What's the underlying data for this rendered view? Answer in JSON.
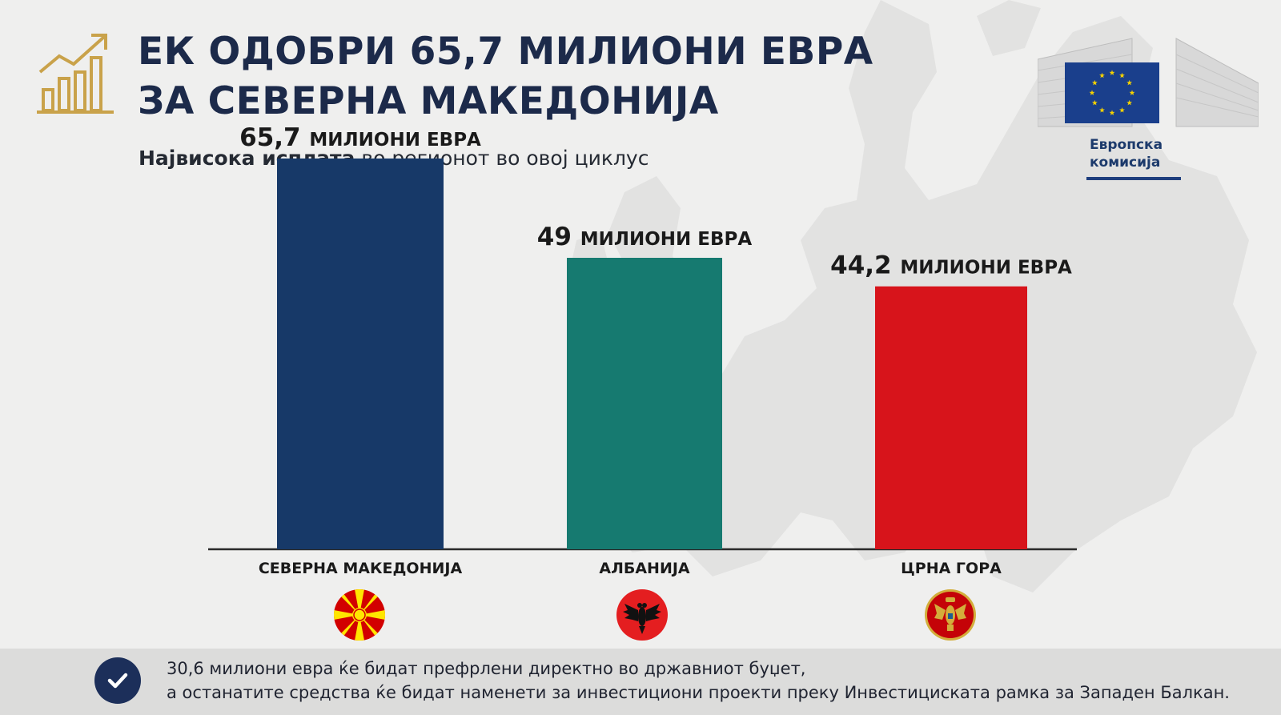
{
  "header": {
    "title_line1": "ЕК ОДОБРИ 65,7 МИЛИОНИ ЕВРА",
    "title_line2": "ЗА СЕВЕРНА МАКЕДОНИЈА",
    "subtitle_bold": "Највисока исплата",
    "subtitle_rest": " во регионот во овој циклус",
    "icon": "growth-chart-icon"
  },
  "logo": {
    "line1": "Европска",
    "line2": "комисија",
    "icon": "eu-flag-icon"
  },
  "chart_data": {
    "type": "bar",
    "categories": [
      "СЕВЕРНА МАКЕДОНИЈА",
      "АЛБАНИЈА",
      "ЦРНА ГОРА"
    ],
    "values": [
      65.7,
      49,
      44.2
    ],
    "value_labels": [
      {
        "number": "65,7",
        "unit": "МИЛИОНИ ЕВРА"
      },
      {
        "number": "49",
        "unit": "МИЛИОНИ ЕВРА"
      },
      {
        "number": "44,2",
        "unit": "МИЛИОНИ ЕВРА"
      }
    ],
    "colors": [
      "#173968",
      "#167a70",
      "#d7141b"
    ],
    "flags": [
      "north-macedonia-flag-icon",
      "albania-flag-icon",
      "montenegro-flag-icon"
    ],
    "ylim": [
      0,
      70
    ],
    "title": "",
    "xlabel": "",
    "ylabel": "",
    "grid": false,
    "legend": "none"
  },
  "footer": {
    "icon": "checkmark-icon",
    "line1": "30,6 милиони евра ќе бидат префрлени директно во државниот буџет,",
    "line2": "а останатите средства ќе бидат наменети за инвестициони проекти преку Инвестициската рамка за Западен Балкан."
  }
}
